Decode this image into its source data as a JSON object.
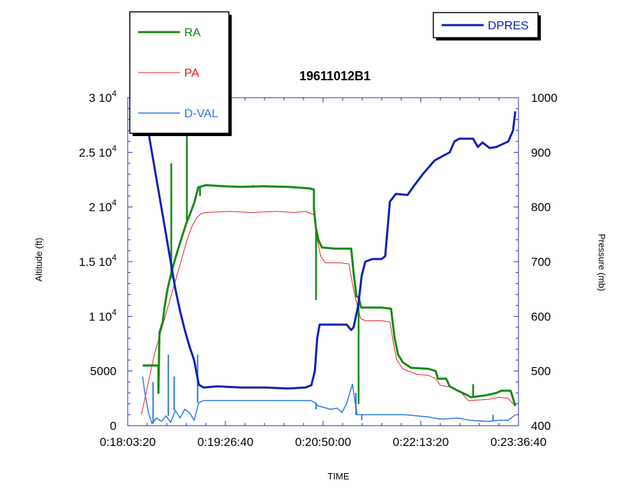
{
  "chart_data": {
    "type": "line",
    "title": "19611012B1",
    "xlabel": "TIME",
    "ylabel": "Altitude (ft)",
    "y2label": "Pressure (mb)",
    "x_unit": "seconds",
    "xlim": [
      1083.33,
      1416.67
    ],
    "ylim": [
      0,
      30000
    ],
    "y2lim": [
      400,
      1000
    ],
    "x_ticks": [
      {
        "value": 1083.33,
        "label": "0:18:03:20"
      },
      {
        "value": 1166.67,
        "label": "0:19:26:40"
      },
      {
        "value": 1250.0,
        "label": "0:20:50:00"
      },
      {
        "value": 1333.33,
        "label": "0:22:13:20"
      },
      {
        "value": 1416.67,
        "label": "0:23:36:40"
      }
    ],
    "y_ticks": [
      {
        "value": 0,
        "label": "0",
        "sup": ""
      },
      {
        "value": 5000,
        "label": "5000",
        "sup": ""
      },
      {
        "value": 10000,
        "label": "1 10",
        "sup": "4"
      },
      {
        "value": 15000,
        "label": "1.5 10",
        "sup": "4"
      },
      {
        "value": 20000,
        "label": "2 10",
        "sup": "4"
      },
      {
        "value": 25000,
        "label": "2.5 10",
        "sup": "4"
      },
      {
        "value": 30000,
        "label": "3 10",
        "sup": "4"
      }
    ],
    "y2_ticks": [
      {
        "value": 400,
        "label": "400"
      },
      {
        "value": 500,
        "label": "500"
      },
      {
        "value": 600,
        "label": "600"
      },
      {
        "value": 700,
        "label": "700"
      },
      {
        "value": 800,
        "label": "800"
      },
      {
        "value": 900,
        "label": "900"
      },
      {
        "value": 1000,
        "label": "1000"
      }
    ],
    "legend_left": [
      "RA",
      "PA",
      "D-VAL"
    ],
    "legend_right": [
      "DPRES"
    ],
    "series": [
      {
        "name": "RA",
        "axis": "left",
        "color": "#138a13",
        "width": 3,
        "points": [
          [
            1096.1,
            5500
          ],
          [
            1109.5,
            5500
          ],
          [
            1109.5,
            3000
          ],
          [
            1110.4,
            8500
          ],
          [
            1113.2,
            9500
          ],
          [
            1115.0,
            11000
          ],
          [
            1117.3,
            12500
          ],
          [
            1119.5,
            13500
          ],
          [
            1121.8,
            14500
          ],
          [
            1124.5,
            15500
          ],
          [
            1127.3,
            16500
          ],
          [
            1130.3,
            17500
          ],
          [
            1133.3,
            18500
          ],
          [
            1137.0,
            19500
          ],
          [
            1140.4,
            20500
          ],
          [
            1142.8,
            21500
          ],
          [
            1143.5,
            21800
          ],
          [
            1150.0,
            22000
          ],
          [
            1165.0,
            21900
          ],
          [
            1180.0,
            21850
          ],
          [
            1200.0,
            21900
          ],
          [
            1220.0,
            21850
          ],
          [
            1238.5,
            21700
          ],
          [
            1242.2,
            21600
          ],
          [
            1242.2,
            19800
          ],
          [
            1244.0,
            18000
          ],
          [
            1246.0,
            17000
          ],
          [
            1249.0,
            16300
          ],
          [
            1260.0,
            16200
          ],
          [
            1274.0,
            16200
          ],
          [
            1276.0,
            14000
          ],
          [
            1278.5,
            11800
          ],
          [
            1280.3,
            11800
          ],
          [
            1282.5,
            10800
          ],
          [
            1300.0,
            10800
          ],
          [
            1308.0,
            10700
          ],
          [
            1311.0,
            8000
          ],
          [
            1314.0,
            6500
          ],
          [
            1318.0,
            5800
          ],
          [
            1325.0,
            5300
          ],
          [
            1340.0,
            5200
          ],
          [
            1346.0,
            5000
          ],
          [
            1348.0,
            4300
          ],
          [
            1355.0,
            4300
          ],
          [
            1358.0,
            3600
          ],
          [
            1365.0,
            3200
          ],
          [
            1373.0,
            2800
          ],
          [
            1376.0,
            2600
          ],
          [
            1390.0,
            2800
          ],
          [
            1398.0,
            3000
          ],
          [
            1402.0,
            3200
          ],
          [
            1410.0,
            3200
          ],
          [
            1412.0,
            2500
          ],
          [
            1414.0,
            1800
          ]
        ],
        "spikes": [
          [
            1109.5,
            3000
          ],
          [
            1120.5,
            24000
          ],
          [
            1133.8,
            29000
          ],
          [
            1145.0,
            21000
          ],
          [
            1190.0,
            22000
          ],
          [
            1244.0,
            11500
          ],
          [
            1280.3,
            2000
          ],
          [
            1366.0,
            3200
          ],
          [
            1378.0,
            3800
          ]
        ]
      },
      {
        "name": "PA",
        "axis": "left",
        "color": "#e02020",
        "width": 1,
        "points": [
          [
            1095.0,
            1000
          ],
          [
            1097.0,
            2000
          ],
          [
            1100.0,
            3500
          ],
          [
            1103.0,
            5000
          ],
          [
            1106.0,
            6500
          ],
          [
            1110.0,
            8000
          ],
          [
            1114.0,
            9500
          ],
          [
            1118.0,
            11000
          ],
          [
            1122.0,
            12500
          ],
          [
            1126.0,
            14000
          ],
          [
            1130.0,
            15500
          ],
          [
            1134.0,
            17000
          ],
          [
            1138.0,
            18200
          ],
          [
            1142.0,
            19000
          ],
          [
            1146.0,
            19400
          ],
          [
            1150.0,
            19500
          ],
          [
            1170.0,
            19600
          ],
          [
            1190.0,
            19500
          ],
          [
            1210.0,
            19600
          ],
          [
            1225.0,
            19500
          ],
          [
            1235.0,
            19600
          ],
          [
            1242.0,
            19300
          ],
          [
            1245.0,
            17000
          ],
          [
            1248.0,
            15500
          ],
          [
            1252.0,
            14900
          ],
          [
            1265.0,
            14900
          ],
          [
            1272.0,
            14800
          ],
          [
            1275.0,
            13000
          ],
          [
            1278.0,
            11500
          ],
          [
            1282.0,
            9800
          ],
          [
            1286.0,
            9600
          ],
          [
            1300.0,
            9600
          ],
          [
            1307.0,
            9500
          ],
          [
            1310.0,
            7500
          ],
          [
            1313.0,
            6000
          ],
          [
            1318.0,
            5200
          ],
          [
            1330.0,
            4700
          ],
          [
            1340.0,
            4600
          ],
          [
            1346.0,
            4300
          ],
          [
            1350.0,
            3700
          ],
          [
            1360.0,
            3500
          ],
          [
            1368.0,
            3000
          ],
          [
            1374.0,
            2300
          ],
          [
            1390.0,
            2400
          ],
          [
            1400.0,
            2600
          ],
          [
            1408.0,
            2500
          ],
          [
            1414.0,
            1800
          ]
        ]
      },
      {
        "name": "D-VAL",
        "axis": "left",
        "color": "#2b78e4",
        "width": 1.5,
        "points": [
          [
            1096.0,
            4500
          ],
          [
            1098.0,
            3000
          ],
          [
            1101.0,
            1200
          ],
          [
            1104.0,
            200
          ],
          [
            1108.0,
            700
          ],
          [
            1112.0,
            400
          ],
          [
            1116.0,
            900
          ],
          [
            1120.0,
            300
          ],
          [
            1124.0,
            1400
          ],
          [
            1128.0,
            700
          ],
          [
            1132.0,
            1500
          ],
          [
            1136.0,
            1200
          ],
          [
            1140.0,
            500
          ],
          [
            1144.0,
            2100
          ],
          [
            1148.0,
            2300
          ],
          [
            1170.0,
            2300
          ],
          [
            1190.0,
            2300
          ],
          [
            1210.0,
            2300
          ],
          [
            1225.0,
            2300
          ],
          [
            1240.0,
            2300
          ],
          [
            1243.0,
            2100
          ],
          [
            1246.0,
            1800
          ],
          [
            1250.0,
            1700
          ],
          [
            1256.0,
            1500
          ],
          [
            1262.0,
            1600
          ],
          [
            1266.0,
            1200
          ],
          [
            1270.0,
            2000
          ],
          [
            1275.0,
            3800
          ],
          [
            1279.0,
            1000
          ],
          [
            1284.0,
            1000
          ],
          [
            1300.0,
            1000
          ],
          [
            1320.0,
            1000
          ],
          [
            1340.0,
            800
          ],
          [
            1350.0,
            600
          ],
          [
            1365.0,
            700
          ],
          [
            1375.0,
            500
          ],
          [
            1390.0,
            400
          ],
          [
            1400.0,
            500
          ],
          [
            1408.0,
            500
          ],
          [
            1414.0,
            1000
          ]
        ],
        "spikes": [
          [
            1105.0,
            4000
          ],
          [
            1118.0,
            6500
          ],
          [
            1123.0,
            4500
          ],
          [
            1143.0,
            6500
          ],
          [
            1244.0,
            1500
          ],
          [
            1278.0,
            3000
          ],
          [
            1283.0,
            500
          ],
          [
            1395.0,
            1000
          ]
        ]
      },
      {
        "name": "DPRES",
        "axis": "right",
        "color": "#0a1fb5",
        "width": 3,
        "points": [
          [
            1097.0,
            980
          ],
          [
            1100.0,
            950
          ],
          [
            1104.0,
            900
          ],
          [
            1108.0,
            850
          ],
          [
            1112.0,
            800
          ],
          [
            1116.0,
            750
          ],
          [
            1120.0,
            700
          ],
          [
            1124.0,
            650
          ],
          [
            1128.0,
            610
          ],
          [
            1132.0,
            575
          ],
          [
            1136.0,
            545
          ],
          [
            1140.0,
            520
          ],
          [
            1144.0,
            475
          ],
          [
            1148.0,
            470
          ],
          [
            1160.0,
            472
          ],
          [
            1180.0,
            470
          ],
          [
            1200.0,
            470
          ],
          [
            1220.0,
            468
          ],
          [
            1235.0,
            470
          ],
          [
            1240.0,
            474
          ],
          [
            1243.0,
            500
          ],
          [
            1245.0,
            560
          ],
          [
            1247.0,
            585
          ],
          [
            1258.0,
            585
          ],
          [
            1270.0,
            585
          ],
          [
            1272.0,
            580
          ],
          [
            1274.0,
            575
          ],
          [
            1276.0,
            580
          ],
          [
            1280.0,
            620
          ],
          [
            1283.0,
            675
          ],
          [
            1286.0,
            700
          ],
          [
            1292.0,
            705
          ],
          [
            1300.0,
            705
          ],
          [
            1303.0,
            710
          ],
          [
            1305.0,
            760
          ],
          [
            1307.0,
            810
          ],
          [
            1312.0,
            824
          ],
          [
            1322.0,
            822
          ],
          [
            1328.0,
            840
          ],
          [
            1335.0,
            860
          ],
          [
            1345.0,
            885
          ],
          [
            1358.0,
            900
          ],
          [
            1362.0,
            920
          ],
          [
            1366.0,
            925
          ],
          [
            1378.0,
            925
          ],
          [
            1382.0,
            910
          ],
          [
            1386.0,
            918
          ],
          [
            1392.0,
            908
          ],
          [
            1398.0,
            910
          ],
          [
            1408.0,
            920
          ],
          [
            1412.0,
            940
          ],
          [
            1414.0,
            975
          ]
        ]
      }
    ]
  }
}
